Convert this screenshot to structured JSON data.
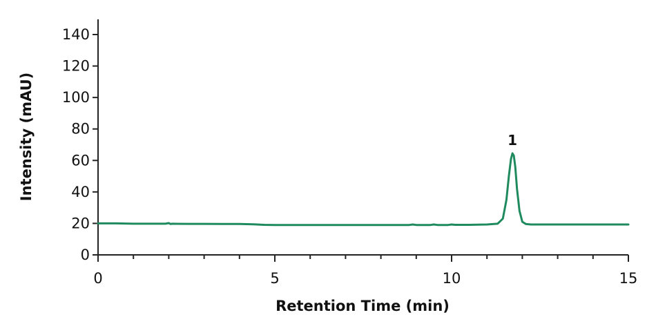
{
  "chart_data": {
    "type": "line",
    "title": "",
    "xlabel": "Retention Time (min)",
    "ylabel": "Intensity (mAU)",
    "xlim": [
      0,
      15
    ],
    "ylim": [
      0,
      140
    ],
    "x_ticks": [
      0,
      5,
      10,
      15
    ],
    "x_tick_labels": [
      "0",
      "5",
      "10",
      "15"
    ],
    "y_ticks": [
      0,
      20,
      40,
      60,
      80,
      100,
      120,
      140
    ],
    "y_tick_labels": [
      "0",
      "20",
      "40",
      "60",
      "80",
      "100",
      "120",
      "140"
    ],
    "x_minor_step": 1,
    "grid": false,
    "line_color": "#1f8a5e",
    "series": [
      {
        "x": [
          0,
          0.5,
          1,
          1.5,
          1.9,
          2.0,
          2.05,
          2.1,
          2.5,
          3,
          3.5,
          4,
          4.4,
          4.7,
          5,
          6,
          7,
          8,
          8.8,
          8.9,
          9.0,
          9.4,
          9.5,
          9.6,
          9.9,
          10.0,
          10.1,
          10.5,
          11.0,
          11.3,
          11.45,
          11.55,
          11.62,
          11.68,
          11.72,
          11.76,
          11.8,
          11.85,
          11.92,
          12.0,
          12.1,
          12.25,
          12.5,
          13,
          13.5,
          14,
          14.5,
          15
        ],
        "y": [
          20,
          20,
          19.8,
          19.8,
          19.8,
          20.2,
          19.6,
          19.8,
          19.7,
          19.7,
          19.6,
          19.6,
          19.4,
          19.1,
          19.0,
          19.0,
          19.0,
          19.0,
          19.0,
          19.3,
          19.0,
          19.0,
          19.3,
          19.0,
          19.0,
          19.3,
          19.1,
          19.1,
          19.3,
          19.8,
          23,
          35,
          50,
          61,
          64.5,
          63,
          56,
          42,
          28,
          21,
          19.6,
          19.3,
          19.3,
          19.3,
          19.3,
          19.3,
          19.3,
          19.3
        ]
      }
    ],
    "annotations": [
      {
        "text": "1",
        "x": 11.76,
        "y": 64.5
      }
    ]
  }
}
